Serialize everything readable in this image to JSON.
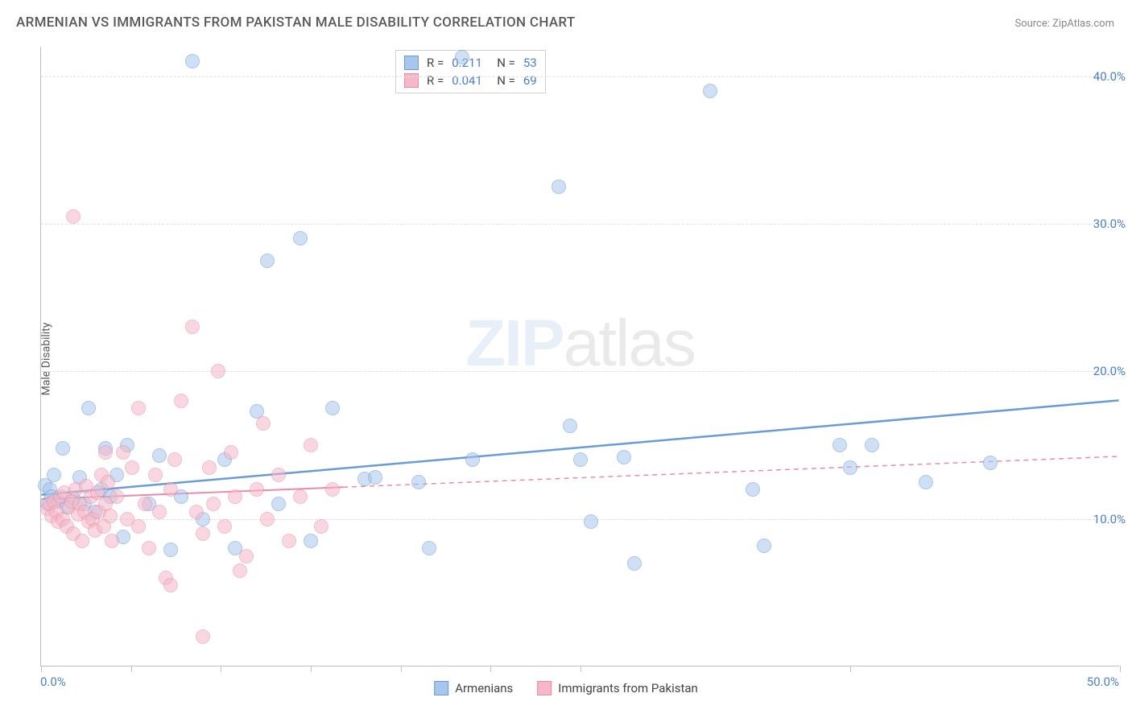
{
  "title": "ARMENIAN VS IMMIGRANTS FROM PAKISTAN MALE DISABILITY CORRELATION CHART",
  "source": "Source: ZipAtlas.com",
  "ylabel": "Male Disability",
  "watermark": {
    "part1": "ZIP",
    "part2": "atlas"
  },
  "chart": {
    "type": "scatter",
    "xlim": [
      0,
      50
    ],
    "ylim": [
      0,
      42
    ],
    "x_ticks": [
      0,
      4.17,
      8.33,
      12.5,
      16.67,
      20.83,
      25,
      37.5,
      50
    ],
    "y_gridlines": [
      10,
      20,
      30,
      40
    ],
    "y_tick_labels": [
      "10.0%",
      "20.0%",
      "30.0%",
      "40.0%"
    ],
    "x_min_label": "0.0%",
    "x_max_label": "50.0%",
    "background_color": "#ffffff",
    "grid_color": "#e0e0e0",
    "axis_value_color": "#4a7fc8",
    "point_radius": 9,
    "point_opacity": 0.55,
    "series": [
      {
        "name": "Armenians",
        "color_fill": "#a8c6ec",
        "color_stroke": "#6a9bd8",
        "r": "0.211",
        "n": "53",
        "trend": {
          "x1": 0,
          "y1": 11.6,
          "x2": 50,
          "y2": 18.0,
          "solid_until_x": 50,
          "width": 2.5
        },
        "points": [
          [
            0.2,
            12.3
          ],
          [
            0.3,
            11.0
          ],
          [
            0.4,
            12.0
          ],
          [
            0.5,
            11.5
          ],
          [
            0.6,
            13.0
          ],
          [
            0.8,
            11.2
          ],
          [
            1.0,
            14.8
          ],
          [
            1.2,
            10.8
          ],
          [
            1.5,
            11.4
          ],
          [
            1.8,
            12.8
          ],
          [
            2.0,
            11.0
          ],
          [
            2.2,
            17.5
          ],
          [
            2.5,
            10.5
          ],
          [
            2.8,
            12.0
          ],
          [
            3.0,
            14.8
          ],
          [
            3.2,
            11.5
          ],
          [
            3.5,
            13.0
          ],
          [
            3.8,
            8.8
          ],
          [
            4.0,
            15.0
          ],
          [
            5.0,
            11.0
          ],
          [
            5.5,
            14.3
          ],
          [
            6.0,
            7.9
          ],
          [
            6.5,
            11.5
          ],
          [
            7.0,
            41.0
          ],
          [
            7.5,
            10.0
          ],
          [
            8.5,
            14.0
          ],
          [
            9.0,
            8.0
          ],
          [
            10.0,
            17.3
          ],
          [
            10.5,
            27.5
          ],
          [
            11.0,
            11.0
          ],
          [
            12.0,
            29.0
          ],
          [
            12.5,
            8.5
          ],
          [
            13.5,
            17.5
          ],
          [
            15.0,
            12.7
          ],
          [
            15.5,
            12.8
          ],
          [
            17.5,
            12.5
          ],
          [
            18.0,
            8.0
          ],
          [
            19.5,
            41.3
          ],
          [
            20.0,
            14.0
          ],
          [
            24.0,
            32.5
          ],
          [
            24.5,
            16.3
          ],
          [
            25.0,
            14.0
          ],
          [
            25.5,
            9.8
          ],
          [
            27.0,
            14.2
          ],
          [
            27.5,
            7.0
          ],
          [
            31.0,
            39.0
          ],
          [
            33.0,
            12.0
          ],
          [
            33.5,
            8.2
          ],
          [
            37.0,
            15.0
          ],
          [
            37.5,
            13.5
          ],
          [
            38.5,
            15.0
          ],
          [
            41.0,
            12.5
          ],
          [
            44.0,
            13.8
          ]
        ]
      },
      {
        "name": "Immigrants from Pakistan",
        "color_fill": "#f5b8c8",
        "color_stroke": "#e88ba5",
        "r": "0.041",
        "n": "69",
        "trend": {
          "x1": 0,
          "y1": 11.3,
          "x2": 50,
          "y2": 14.2,
          "solid_until_x": 14,
          "width": 2,
          "dash": "6,5"
        },
        "points": [
          [
            0.3,
            10.7
          ],
          [
            0.4,
            11.0
          ],
          [
            0.5,
            10.2
          ],
          [
            0.6,
            11.2
          ],
          [
            0.7,
            10.5
          ],
          [
            0.8,
            9.8
          ],
          [
            0.9,
            11.5
          ],
          [
            1.0,
            10.0
          ],
          [
            1.1,
            11.8
          ],
          [
            1.2,
            9.5
          ],
          [
            1.3,
            10.8
          ],
          [
            1.4,
            11.2
          ],
          [
            1.5,
            9.0
          ],
          [
            1.6,
            12.0
          ],
          [
            1.7,
            10.3
          ],
          [
            1.8,
            11.0
          ],
          [
            1.9,
            8.5
          ],
          [
            2.0,
            10.5
          ],
          [
            2.1,
            12.2
          ],
          [
            2.2,
            9.8
          ],
          [
            2.3,
            11.5
          ],
          [
            2.4,
            10.0
          ],
          [
            2.5,
            9.2
          ],
          [
            2.6,
            11.8
          ],
          [
            2.7,
            10.5
          ],
          [
            2.8,
            13.0
          ],
          [
            2.9,
            9.5
          ],
          [
            3.0,
            11.0
          ],
          [
            3.1,
            12.5
          ],
          [
            3.2,
            10.2
          ],
          [
            3.3,
            8.5
          ],
          [
            3.5,
            11.5
          ],
          [
            3.8,
            14.5
          ],
          [
            4.0,
            10.0
          ],
          [
            4.2,
            13.5
          ],
          [
            4.5,
            9.5
          ],
          [
            4.8,
            11.0
          ],
          [
            5.0,
            8.0
          ],
          [
            5.3,
            13.0
          ],
          [
            5.5,
            10.5
          ],
          [
            5.8,
            6.0
          ],
          [
            6.0,
            12.0
          ],
          [
            6.2,
            14.0
          ],
          [
            6.5,
            18.0
          ],
          [
            7.0,
            23.0
          ],
          [
            7.2,
            10.5
          ],
          [
            7.5,
            9.0
          ],
          [
            7.8,
            13.5
          ],
          [
            8.0,
            11.0
          ],
          [
            8.2,
            20.0
          ],
          [
            8.5,
            9.5
          ],
          [
            8.8,
            14.5
          ],
          [
            9.0,
            11.5
          ],
          [
            9.2,
            6.5
          ],
          [
            9.5,
            7.5
          ],
          [
            10.0,
            12.0
          ],
          [
            10.3,
            16.5
          ],
          [
            10.5,
            10.0
          ],
          [
            11.0,
            13.0
          ],
          [
            11.5,
            8.5
          ],
          [
            12.0,
            11.5
          ],
          [
            12.5,
            15.0
          ],
          [
            13.0,
            9.5
          ],
          [
            13.5,
            12.0
          ],
          [
            1.5,
            30.5
          ],
          [
            7.5,
            2.0
          ],
          [
            6.0,
            5.5
          ],
          [
            4.5,
            17.5
          ],
          [
            3.0,
            14.5
          ]
        ]
      }
    ]
  },
  "top_legend": {
    "r_label": "R =",
    "n_label": "N ="
  },
  "bottom_legend": {
    "items": [
      {
        "label": "Armenians",
        "fill": "#a8c6ec",
        "stroke": "#6a9bd8"
      },
      {
        "label": "Immigrants from Pakistan",
        "fill": "#f5b8c8",
        "stroke": "#e88ba5"
      }
    ]
  }
}
